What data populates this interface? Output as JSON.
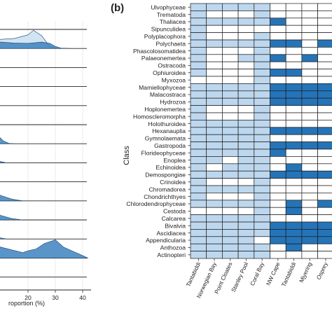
{
  "panel_label": "(b)",
  "colors": {
    "light": "#bdd7ee",
    "dark": "#2574b8",
    "empty": "#ffffff",
    "ridge_light": "#cfe3f3",
    "ridge_dark": "#3d82bf"
  },
  "chart_data": [
    {
      "type": "area",
      "subtype": "ridgeline (partially cropped)",
      "xlabel": "roportion (%)",
      "x_ticks": [
        20,
        30,
        40
      ],
      "xlim": [
        0,
        45
      ],
      "grid": true,
      "ridges": [
        {
          "row": 0,
          "series": []
        },
        {
          "row": 1,
          "series": [
            {
              "shade": "light",
              "x": [
                0,
                5,
                10,
                15,
                20,
                22,
                25,
                28,
                30,
                32,
                35
              ],
              "y": [
                0.35,
                0.45,
                0.5,
                0.55,
                0.75,
                1.0,
                0.7,
                0.1,
                0.02,
                0,
                0
              ]
            },
            {
              "shade": "dark",
              "x": [
                0,
                5,
                10,
                15,
                20,
                25,
                28,
                30,
                32,
                35
              ],
              "y": [
                0.3,
                0.38,
                0.35,
                0.3,
                0.28,
                0.35,
                0.28,
                0.12,
                0.02,
                0
              ]
            }
          ]
        },
        {
          "row": 2,
          "series": []
        },
        {
          "row": 3,
          "series": []
        },
        {
          "row": 4,
          "series": []
        },
        {
          "row": 5,
          "series": []
        },
        {
          "row": 6,
          "series": [
            {
              "shade": "dark",
              "x": [
                0,
                3,
                6,
                9,
                11,
                13,
                15
              ],
              "y": [
                0.15,
                0.35,
                0.55,
                0.45,
                0.15,
                0.02,
                0
              ]
            }
          ]
        },
        {
          "row": 7,
          "series": [
            {
              "shade": "dark",
              "x": [
                0,
                3,
                6,
                9,
                12
              ],
              "y": [
                0.2,
                0.4,
                0.3,
                0.1,
                0
              ]
            }
          ]
        },
        {
          "row": 8,
          "series": [
            {
              "shade": "dark",
              "x": [
                0,
                2,
                4,
                6,
                8,
                10
              ],
              "y": [
                0.9,
                0.6,
                0.4,
                0.2,
                0.05,
                0
              ]
            }
          ]
        },
        {
          "row": 9,
          "series": [
            {
              "shade": "dark",
              "x": [
                0,
                2,
                4,
                6,
                8,
                10,
                14,
                18
              ],
              "y": [
                0.3,
                0.45,
                0.5,
                0.55,
                0.45,
                0.3,
                0.1,
                0
              ]
            }
          ]
        },
        {
          "row": 10,
          "series": [
            {
              "shade": "dark",
              "x": [
                0,
                2,
                4,
                6,
                8,
                10,
                14,
                18
              ],
              "y": [
                0.3,
                0.4,
                0.45,
                0.5,
                0.4,
                0.25,
                0.08,
                0
              ]
            }
          ]
        },
        {
          "row": 11,
          "series": [
            {
              "shade": "dark",
              "x": [
                0,
                4,
                8,
                12
              ],
              "y": [
                0.1,
                0.25,
                0.12,
                0
              ]
            }
          ]
        },
        {
          "row": 12,
          "series": [
            {
              "shade": "dark",
              "x": [
                0,
                3,
                6,
                10,
                14,
                18,
                20,
                23,
                26,
                30,
                33,
                36,
                39,
                42
              ],
              "y": [
                0.2,
                0.6,
                0.9,
                0.6,
                0.45,
                0.3,
                0.4,
                0.5,
                0.8,
                1.0,
                0.6,
                0.4,
                0.2,
                0
              ]
            }
          ]
        },
        {
          "row": 13,
          "series": [
            {
              "shade": "dark",
              "x": [
                0,
                2,
                4,
                6,
                8
              ],
              "y": [
                0.25,
                0.3,
                0.2,
                0.08,
                0
              ]
            }
          ]
        }
      ]
    },
    {
      "type": "heatmap",
      "ylabel": "Class",
      "columns": [
        "Tantabiddi",
        "Norwegian Bay",
        "Point Cloates",
        "Stanley Pool",
        "Coral Bay",
        "NW Cape",
        "Tantabiddi",
        "Mjyering",
        "Osprey"
      ],
      "rows": [
        "Ulvophyceae",
        "Trematoda",
        "Thaliacea",
        "Sipunculidea",
        "Polyplacophora",
        "Polychaeta",
        "Phascolosomatidea",
        "Palaeonemertea",
        "Ostracoda",
        "Ophiuroidea",
        "Myxozoa",
        "Mamiellophyceae",
        "Malacostraca",
        "Hydrozoa",
        "Hoplonemertea",
        "Homoscleromorpha",
        "Holothuroidea",
        "Hexanauplia",
        "Gymnolaemata",
        "Gastropoda",
        "Florideophyceae",
        "Enoplea",
        "Echinoidea",
        "Demospongiae",
        "Crinoidea",
        "Chromadorea",
        "Chondrichthyes",
        "Chlorodendrophyceae",
        "Cestoda",
        "Calcarea",
        "Bivalvia",
        "Ascidiacea",
        "Appendicularia",
        "Anthozoa",
        "Actinopteri"
      ],
      "encoding": {
        "0": "absent",
        "1": "light",
        "2": "dark"
      },
      "values": [
        [
          1,
          1,
          1,
          1,
          1,
          0,
          0,
          0,
          0
        ],
        [
          1,
          0,
          0,
          0,
          1,
          0,
          0,
          0,
          0
        ],
        [
          1,
          1,
          1,
          1,
          1,
          2,
          0,
          0,
          0
        ],
        [
          1,
          0,
          0,
          0,
          0,
          0,
          0,
          0,
          0
        ],
        [
          1,
          0,
          0,
          0,
          1,
          0,
          0,
          0,
          0
        ],
        [
          1,
          1,
          1,
          1,
          1,
          2,
          2,
          0,
          2
        ],
        [
          1,
          0,
          0,
          0,
          1,
          0,
          0,
          0,
          0
        ],
        [
          1,
          0,
          0,
          1,
          1,
          2,
          0,
          2,
          0
        ],
        [
          1,
          0,
          0,
          0,
          1,
          0,
          0,
          0,
          0
        ],
        [
          1,
          0,
          0,
          0,
          1,
          2,
          2,
          0,
          0
        ],
        [
          0,
          0,
          0,
          0,
          1,
          0,
          0,
          0,
          0
        ],
        [
          1,
          1,
          1,
          1,
          1,
          2,
          2,
          2,
          2
        ],
        [
          1,
          1,
          1,
          1,
          1,
          2,
          2,
          2,
          2
        ],
        [
          1,
          1,
          1,
          1,
          1,
          2,
          2,
          2,
          2
        ],
        [
          1,
          0,
          0,
          0,
          1,
          0,
          0,
          0,
          0
        ],
        [
          1,
          0,
          0,
          0,
          1,
          0,
          0,
          0,
          0
        ],
        [
          1,
          1,
          1,
          1,
          1,
          0,
          0,
          0,
          0
        ],
        [
          1,
          1,
          1,
          1,
          1,
          2,
          2,
          2,
          2
        ],
        [
          1,
          1,
          1,
          1,
          1,
          0,
          0,
          0,
          0
        ],
        [
          1,
          1,
          1,
          1,
          1,
          2,
          2,
          2,
          2
        ],
        [
          1,
          1,
          1,
          1,
          1,
          2,
          0,
          0,
          0
        ],
        [
          1,
          1,
          0,
          1,
          1,
          0,
          0,
          0,
          0
        ],
        [
          1,
          0,
          1,
          1,
          1,
          0,
          2,
          0,
          0
        ],
        [
          1,
          1,
          1,
          1,
          1,
          2,
          2,
          2,
          2
        ],
        [
          1,
          0,
          0,
          0,
          1,
          0,
          0,
          0,
          0
        ],
        [
          1,
          1,
          1,
          1,
          1,
          0,
          0,
          0,
          0
        ],
        [
          1,
          0,
          0,
          0,
          1,
          0,
          0,
          0,
          0
        ],
        [
          1,
          1,
          1,
          1,
          1,
          0,
          2,
          0,
          2
        ],
        [
          0,
          0,
          0,
          0,
          1,
          0,
          2,
          0,
          0
        ],
        [
          1,
          1,
          1,
          1,
          1,
          0,
          0,
          0,
          0
        ],
        [
          1,
          1,
          1,
          1,
          1,
          2,
          2,
          2,
          2
        ],
        [
          1,
          1,
          1,
          1,
          1,
          2,
          2,
          2,
          2
        ],
        [
          1,
          1,
          1,
          1,
          0,
          2,
          2,
          2,
          2
        ],
        [
          1,
          1,
          1,
          1,
          1,
          0,
          2,
          0,
          0
        ],
        [
          1,
          1,
          1,
          1,
          1,
          0,
          0,
          0,
          0
        ]
      ]
    }
  ]
}
